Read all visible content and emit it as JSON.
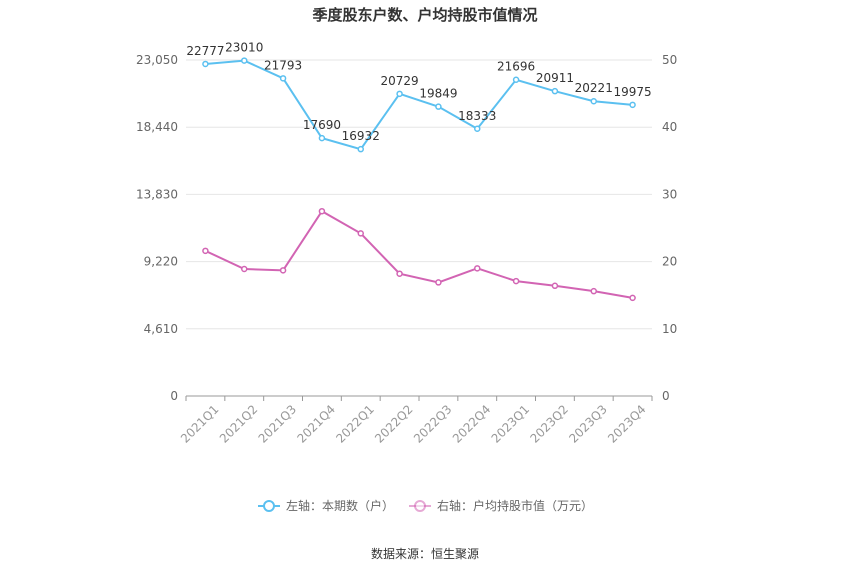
{
  "title": "季度股东户数、户均持股市值情况",
  "source": {
    "label": "数据来源：",
    "value": "恒生聚源"
  },
  "colors": {
    "left_series": "#5bc0f0",
    "right_series": "#d264b3",
    "axis_text": "#666666",
    "grid": "#e6e6e6"
  },
  "chart_data": {
    "type": "line",
    "title": "季度股东户数、户均持股市值情况",
    "categories": [
      "2021Q1",
      "2021Q2",
      "2021Q3",
      "2021Q4",
      "2022Q1",
      "2022Q2",
      "2022Q3",
      "2022Q4",
      "2023Q1",
      "2023Q2",
      "2023Q3",
      "2023Q4"
    ],
    "left_axis": {
      "ticks": [
        "0",
        "4,610",
        "9,220",
        "13,830",
        "18,440",
        "23,050"
      ],
      "range": [
        0,
        23050
      ]
    },
    "right_axis": {
      "ticks": [
        "0",
        "10",
        "20",
        "30",
        "40",
        "50"
      ],
      "range": [
        0,
        50
      ]
    },
    "grid": true,
    "legend_position": "bottom",
    "series": [
      {
        "name": "左轴：本期数（户）",
        "axis": "left",
        "color": "#5bc0f0",
        "values": [
          22777,
          23010,
          21793,
          17690,
          16932,
          20729,
          19849,
          18333,
          21696,
          20911,
          20221,
          19975
        ],
        "labels": [
          "22777",
          "23010",
          "21793",
          "17690",
          "16932",
          "20729",
          "19849",
          "18333",
          "21696",
          "20911",
          "20221",
          "19975"
        ]
      },
      {
        "name": "右轴：户均持股市值（万元）",
        "axis": "right",
        "color": "#d264b3",
        "values": [
          21.6,
          18.9,
          18.7,
          27.5,
          24.2,
          18.2,
          16.9,
          19.0,
          17.1,
          16.4,
          15.6,
          14.6
        ]
      }
    ]
  }
}
